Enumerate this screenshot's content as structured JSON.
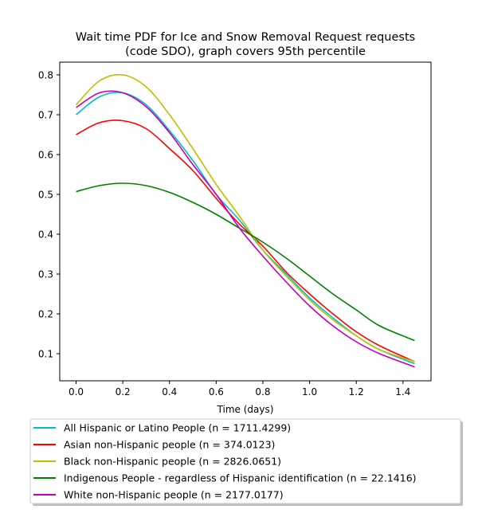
{
  "chart_data": {
    "type": "line",
    "title_lines": [
      "Wait time PDF for Ice and Snow Removal Request  requests",
      "(code SDO), graph covers 95th percentile"
    ],
    "xlabel": "Time (days)",
    "ylabel": "",
    "xlim": [
      -0.07,
      1.52
    ],
    "ylim": [
      0.032,
      0.832
    ],
    "x_ticks": [
      0.0,
      0.2,
      0.4,
      0.6,
      0.8,
      1.0,
      1.2,
      1.4
    ],
    "x_tick_labels": [
      "0.0",
      "0.2",
      "0.4",
      "0.6",
      "0.8",
      "1.0",
      "1.2",
      "1.4"
    ],
    "y_ticks": [
      0.1,
      0.2,
      0.3,
      0.4,
      0.5,
      0.6,
      0.7,
      0.8
    ],
    "y_tick_labels": [
      "0.1",
      "0.2",
      "0.3",
      "0.4",
      "0.5",
      "0.6",
      "0.7",
      "0.8"
    ],
    "grid": false,
    "legend_position": "below plot",
    "x": [
      0.0,
      0.1,
      0.2,
      0.3,
      0.4,
      0.5,
      0.6,
      0.7,
      0.8,
      0.9,
      1.0,
      1.1,
      1.2,
      1.3,
      1.45
    ],
    "series": [
      {
        "name": "All Hispanic or Latino People (n = 1711.4299)",
        "color": "#00bfbf",
        "values": [
          0.7,
          0.745,
          0.755,
          0.725,
          0.66,
          0.585,
          0.5,
          0.435,
          0.36,
          0.3,
          0.24,
          0.19,
          0.145,
          0.11,
          0.075
        ]
      },
      {
        "name": "Asian non-Hispanic people (n = 374.0123)",
        "color": "#ff0000",
        "values": [
          0.65,
          0.68,
          0.685,
          0.665,
          0.615,
          0.56,
          0.49,
          0.425,
          0.37,
          0.305,
          0.25,
          0.2,
          0.155,
          0.12,
          0.08
        ]
      },
      {
        "name": "Black non-Hispanic people (n = 2826.0651)",
        "color": "#bfbf00",
        "values": [
          0.725,
          0.785,
          0.8,
          0.77,
          0.7,
          0.615,
          0.525,
          0.445,
          0.36,
          0.295,
          0.235,
          0.185,
          0.145,
          0.11,
          0.08
        ]
      },
      {
        "name": "Indigenous People - regardless of Hispanic identification (n = 22.1416)",
        "color": "#008000",
        "values": [
          0.507,
          0.522,
          0.528,
          0.522,
          0.505,
          0.48,
          0.45,
          0.415,
          0.38,
          0.34,
          0.295,
          0.25,
          0.21,
          0.17,
          0.133
        ]
      },
      {
        "name": "White non-Hispanic people (n = 2177.0177)",
        "color": "#bf00bf",
        "values": [
          0.718,
          0.755,
          0.755,
          0.72,
          0.655,
          0.575,
          0.5,
          0.415,
          0.345,
          0.28,
          0.22,
          0.17,
          0.13,
          0.1,
          0.067
        ]
      }
    ]
  }
}
